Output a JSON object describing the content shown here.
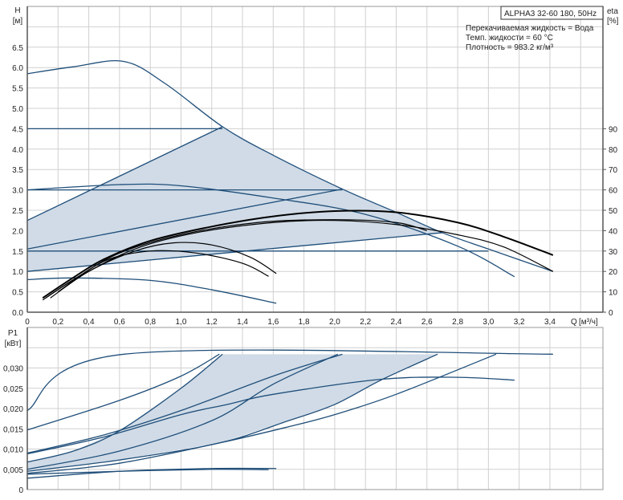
{
  "info_box": {
    "model": "ALPHA3 32-60 180, 50Hz",
    "lines": [
      "Перекачиваемая жидкость = Вода",
      "Темп. жидкости = 60 °C",
      "Плотность = 983.2 кг/м³"
    ]
  },
  "colors": {
    "curve": "#1f4e79",
    "eta": "#000000",
    "fill": "#d0dbe7",
    "grid": "#d0d0d0"
  },
  "chart_data": [
    {
      "type": "line",
      "ylabel": "H",
      "yunit": "[м]",
      "y2label": "eta",
      "y2unit": "[%]",
      "xlabel": "Q",
      "xunit": "[м³/ч]",
      "xlim": [
        0,
        3.745
      ],
      "ylim": [
        0,
        7.5
      ],
      "y2lim": [
        0,
        150
      ],
      "xticks": [
        "0",
        "0,2",
        "0,4",
        "0,6",
        "0,8",
        "1,0",
        "1,2",
        "1,4",
        "1,6",
        "1,8",
        "2,0",
        "2,2",
        "2,4",
        "2,6",
        "2,8",
        "3,0",
        "3,2",
        "3,4"
      ],
      "yticks": [
        "0.0",
        "0.5",
        "1.0",
        "1.5",
        "2.0",
        "2.5",
        "3.0",
        "3.5",
        "4.0",
        "4.5",
        "5.0",
        "5.5",
        "6.0",
        "6.5"
      ],
      "y2ticks": [
        "0",
        "10",
        "20",
        "30",
        "40",
        "50",
        "60",
        "70",
        "80",
        "90"
      ],
      "grid": true,
      "fill_region": [
        [
          0,
          2.25
        ],
        [
          1.27,
          4.55
        ],
        [
          1.6,
          3.85
        ],
        [
          2.05,
          3.02
        ],
        [
          2.4,
          2.45
        ],
        [
          2.7,
          1.95
        ],
        [
          0,
          1.0
        ]
      ],
      "series": [
        {
          "axis": "H",
          "points": [
            [
              0,
              5.85
            ],
            [
              0.3,
              6.02
            ],
            [
              0.63,
              6.15
            ],
            [
              0.9,
              5.6
            ],
            [
              1.27,
              4.55
            ],
            [
              1.6,
              3.85
            ],
            [
              2.05,
              3.02
            ],
            [
              2.4,
              2.45
            ],
            [
              2.7,
              1.95
            ],
            [
              3.0,
              1.55
            ],
            [
              3.42,
              1.0
            ]
          ]
        },
        {
          "axis": "H",
          "points": [
            [
              0,
              4.5
            ],
            [
              1.27,
              4.5
            ]
          ]
        },
        {
          "axis": "H",
          "points": [
            [
              0,
              3.0
            ],
            [
              2.05,
              3.0
            ]
          ]
        },
        {
          "axis": "H",
          "points": [
            [
              0,
              1.5
            ],
            [
              3.0,
              1.5
            ]
          ]
        },
        {
          "axis": "H",
          "points": [
            [
              0,
              2.25
            ],
            [
              1.27,
              4.55
            ]
          ]
        },
        {
          "axis": "H",
          "points": [
            [
              0,
              1.55
            ],
            [
              2.05,
              3.02
            ]
          ]
        },
        {
          "axis": "H",
          "points": [
            [
              0,
              1.0
            ],
            [
              2.7,
              1.95
            ]
          ]
        },
        {
          "axis": "H",
          "points": [
            [
              0,
              3.0
            ],
            [
              0.6,
              3.13
            ],
            [
              1.0,
              3.1
            ],
            [
              1.6,
              2.8
            ],
            [
              2.2,
              2.4
            ],
            [
              2.8,
              1.62
            ],
            [
              3.17,
              0.87
            ]
          ]
        },
        {
          "axis": "H",
          "points": [
            [
              0,
              0.8
            ],
            [
              0.3,
              0.84
            ],
            [
              0.8,
              0.78
            ],
            [
              1.2,
              0.55
            ],
            [
              1.62,
              0.22
            ]
          ]
        },
        {
          "axis": "eta",
          "points": [
            [
              0.1,
              7
            ],
            [
              0.3,
              17
            ],
            [
              0.5,
              26
            ],
            [
              0.8,
              35
            ],
            [
              1.2,
              42
            ],
            [
              1.6,
              47
            ],
            [
              2.0,
              49.6
            ],
            [
              2.4,
              49
            ],
            [
              2.8,
              44
            ],
            [
              3.1,
              37
            ],
            [
              3.42,
              28
            ]
          ]
        },
        {
          "axis": "eta",
          "points": [
            [
              0.1,
              6
            ],
            [
              0.3,
              16
            ],
            [
              0.6,
              29
            ],
            [
              1.0,
              38
            ],
            [
              1.5,
              44
            ],
            [
              2.0,
              45.4
            ],
            [
              2.4,
              44
            ],
            [
              2.6,
              40
            ]
          ]
        },
        {
          "axis": "eta",
          "points": [
            [
              0.12,
              7
            ],
            [
              0.35,
              18
            ],
            [
              0.7,
              31
            ],
            [
              1.1,
              39
            ],
            [
              1.6,
              44
            ],
            [
              2.0,
              45
            ],
            [
              2.4,
              43
            ],
            [
              2.8,
              38
            ],
            [
              3.1,
              32
            ],
            [
              3.42,
              20
            ]
          ]
        },
        {
          "axis": "eta",
          "points": [
            [
              0.15,
              7
            ],
            [
              0.4,
              20
            ],
            [
              0.7,
              30
            ],
            [
              0.95,
              34
            ],
            [
              1.2,
              33
            ],
            [
              1.45,
              27
            ],
            [
              1.62,
              19
            ]
          ]
        },
        {
          "axis": "eta",
          "points": [
            [
              0.2,
              10
            ],
            [
              0.5,
              25
            ],
            [
              0.8,
              30
            ],
            [
              1.1,
              29
            ],
            [
              1.4,
              24
            ],
            [
              1.57,
              17.6
            ]
          ]
        }
      ]
    },
    {
      "type": "line",
      "ylabel": "P1",
      "yunit": "[кВт]",
      "xlim": [
        0,
        3.745
      ],
      "ylim": [
        0,
        0.04
      ],
      "yticks": [
        "0",
        "0,005",
        "0,010",
        "0,015",
        "0,020",
        "0,025",
        "0,030"
      ],
      "grid": true,
      "fill_region": [
        [
          0,
          0.0068
        ],
        [
          0.3,
          0.0095
        ],
        [
          0.6,
          0.0145
        ],
        [
          1.0,
          0.025
        ],
        [
          1.27,
          0.0334
        ],
        [
          2.67,
          0.0334
        ],
        [
          2.3,
          0.027
        ],
        [
          2.0,
          0.021
        ],
        [
          1.7,
          0.017
        ],
        [
          1.25,
          0.0115
        ],
        [
          0.6,
          0.0073
        ],
        [
          0,
          0.0045
        ]
      ],
      "series": [
        {
          "points": [
            [
              0,
              0.0195
            ],
            [
              0.63,
              0.0334
            ],
            [
              3.42,
              0.0334
            ]
          ]
        },
        {
          "points": [
            [
              0,
              0.0147
            ],
            [
              0.6,
              0.022
            ],
            [
              1.0,
              0.028
            ],
            [
              1.25,
              0.0334
            ]
          ]
        },
        {
          "points": [
            [
              0,
              0.0068
            ],
            [
              0.3,
              0.0095
            ],
            [
              0.6,
              0.0145
            ],
            [
              1.0,
              0.025
            ],
            [
              1.27,
              0.0334
            ]
          ]
        },
        {
          "points": [
            [
              0,
              0.009
            ],
            [
              0.5,
              0.0135
            ],
            [
              1.0,
              0.0195
            ],
            [
              1.6,
              0.028
            ],
            [
              2.05,
              0.0334
            ]
          ]
        },
        {
          "points": [
            [
              0,
              0.0088
            ],
            [
              0.5,
              0.013
            ],
            [
              1.0,
              0.0185
            ],
            [
              1.3,
              0.021
            ],
            [
              1.6,
              0.0235
            ],
            [
              2.3,
              0.0272
            ],
            [
              2.8,
              0.0277
            ],
            [
              3.17,
              0.027
            ]
          ]
        },
        {
          "points": [
            [
              0,
              0.005
            ],
            [
              0.6,
              0.0095
            ],
            [
              1.2,
              0.017
            ],
            [
              1.6,
              0.026
            ],
            [
              2.02,
              0.0334
            ]
          ]
        },
        {
          "points": [
            [
              0,
              0.0045
            ],
            [
              0.6,
              0.0073
            ],
            [
              1.25,
              0.0115
            ],
            [
              1.7,
              0.017
            ],
            [
              2.0,
              0.021
            ],
            [
              2.3,
              0.027
            ],
            [
              2.67,
              0.0334
            ]
          ]
        },
        {
          "points": [
            [
              0,
              0.004
            ],
            [
              0.6,
              0.0065
            ],
            [
              1.25,
              0.0115
            ],
            [
              1.7,
              0.0155
            ],
            [
              2.0,
              0.0185
            ],
            [
              2.4,
              0.0235
            ],
            [
              3.05,
              0.0334
            ]
          ]
        },
        {
          "points": [
            [
              0,
              0.0028
            ],
            [
              0.6,
              0.0045
            ],
            [
              1.2,
              0.0052
            ],
            [
              1.62,
              0.0052
            ]
          ]
        },
        {
          "points": [
            [
              0,
              0.0038
            ],
            [
              0.6,
              0.0045
            ],
            [
              1.2,
              0.005
            ],
            [
              1.57,
              0.0049
            ]
          ]
        }
      ]
    }
  ]
}
